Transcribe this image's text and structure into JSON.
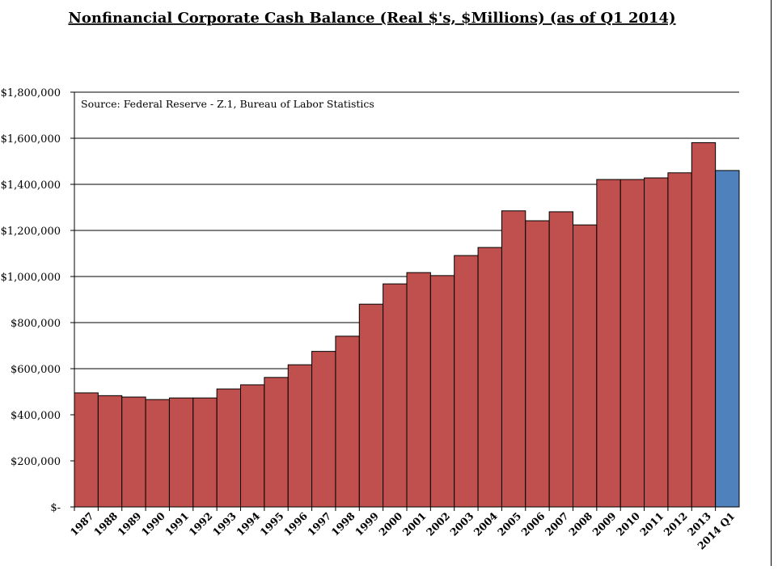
{
  "chart_data": {
    "type": "bar",
    "title": "Nonfinancial Corporate Cash Balance (Real $'s, $Millions) (as of Q1 2014)",
    "annotation": "Source: Federal Reserve - Z.1, Bureau of Labor Statistics",
    "xlabel": "",
    "ylabel": "",
    "ylim": [
      0,
      1800000
    ],
    "yticks": [
      0,
      200000,
      400000,
      600000,
      800000,
      1000000,
      1200000,
      1400000,
      1600000,
      1800000
    ],
    "ytick_labels": [
      "$-",
      "$200,000",
      "$400,000",
      "$600,000",
      "$800,000",
      "$1,000,000",
      "$1,200,000",
      "$1,400,000",
      "$1,600,000",
      "$1,800,000"
    ],
    "categories": [
      "1987",
      "1988",
      "1989",
      "1990",
      "1991",
      "1992",
      "1993",
      "1994",
      "1995",
      "1996",
      "1997",
      "1998",
      "1999",
      "2000",
      "2001",
      "2002",
      "2003",
      "2004",
      "2005",
      "2006",
      "2007",
      "2008",
      "2009",
      "2010",
      "2011",
      "2012",
      "2013",
      "2014 Q1"
    ],
    "values": [
      495000,
      483000,
      477000,
      466000,
      473000,
      473000,
      512000,
      530000,
      562000,
      617000,
      675000,
      741000,
      880000,
      968000,
      1017000,
      1004000,
      1091000,
      1126000,
      1285000,
      1242000,
      1281000,
      1224000,
      1421000,
      1421000,
      1428000,
      1450000,
      1581000,
      1460000
    ],
    "bar_colors": [
      "#c0504d",
      "#c0504d",
      "#c0504d",
      "#c0504d",
      "#c0504d",
      "#c0504d",
      "#c0504d",
      "#c0504d",
      "#c0504d",
      "#c0504d",
      "#c0504d",
      "#c0504d",
      "#c0504d",
      "#c0504d",
      "#c0504d",
      "#c0504d",
      "#c0504d",
      "#c0504d",
      "#c0504d",
      "#c0504d",
      "#c0504d",
      "#c0504d",
      "#c0504d",
      "#c0504d",
      "#c0504d",
      "#c0504d",
      "#c0504d",
      "#4f81bd"
    ],
    "grid": true,
    "legend": "none"
  }
}
